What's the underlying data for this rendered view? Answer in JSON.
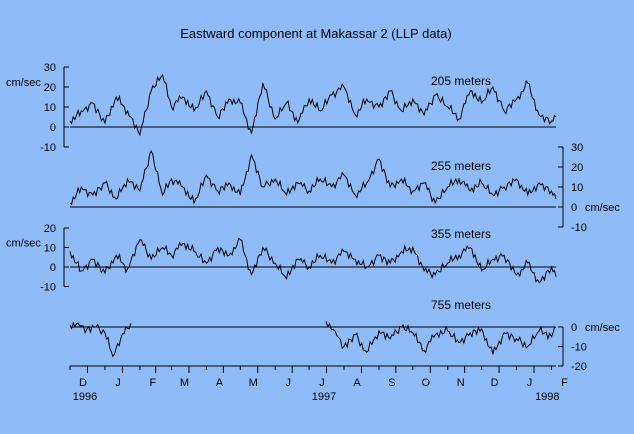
{
  "chart_data": {
    "type": "line",
    "title": "Eastward component at Makassar 2 (LLP data)",
    "background": "#8fbcf9",
    "line_color": "#000000",
    "grid": false,
    "x_axis": {
      "start": "1996-12-01",
      "end": "1998-02-05",
      "tick_labels": [
        "D",
        "J",
        "F",
        "M",
        "A",
        "M",
        "J",
        "J",
        "A",
        "S",
        "O",
        "N",
        "D",
        "J",
        "F"
      ],
      "tick_dates": [
        "1996-12-01",
        "1997-01-01",
        "1997-02-01",
        "1997-03-01",
        "1997-04-01",
        "1997-05-01",
        "1997-06-01",
        "1997-07-01",
        "1997-08-01",
        "1997-09-01",
        "1997-10-01",
        "1997-11-01",
        "1997-12-01",
        "1998-01-01",
        "1998-02-01"
      ],
      "year_labels": [
        {
          "text": "1996",
          "date": "1996-12-01"
        },
        {
          "text": "1997",
          "date": "1997-07-01"
        },
        {
          "text": "1998",
          "date": "1998-01-15"
        }
      ]
    },
    "panels": [
      {
        "name": "205 meters",
        "axis_side": "left",
        "ticks": [
          30,
          20,
          10,
          0,
          -10
        ],
        "unit": "cm/sec",
        "ylim": [
          -10,
          30
        ],
        "gaps": [],
        "x": [
          "1996-12-01",
          "1996-12-11",
          "1996-12-21",
          "1997-01-01",
          "1997-01-11",
          "1997-01-21",
          "1997-02-01",
          "1997-02-11",
          "1997-02-21",
          "1997-03-01",
          "1997-03-11",
          "1997-03-21",
          "1997-04-01",
          "1997-04-11",
          "1997-04-21",
          "1997-05-01",
          "1997-05-11",
          "1997-05-21",
          "1997-06-01",
          "1997-06-11",
          "1997-06-21",
          "1997-07-01",
          "1997-07-11",
          "1997-07-21",
          "1997-08-01",
          "1997-08-11",
          "1997-08-21",
          "1997-09-01",
          "1997-09-11",
          "1997-09-21",
          "1997-10-01",
          "1997-10-11",
          "1997-10-21",
          "1997-11-01",
          "1997-11-11",
          "1997-11-21",
          "1997-12-01",
          "1997-12-11",
          "1997-12-21",
          "1998-01-01",
          "1998-01-11",
          "1998-01-21",
          "1998-02-01",
          "1998-02-05"
        ],
        "y": [
          3,
          8,
          12,
          2,
          15,
          8,
          -4,
          18,
          26,
          10,
          15,
          8,
          18,
          5,
          14,
          12,
          -3,
          22,
          4,
          12,
          2,
          14,
          8,
          16,
          20,
          6,
          14,
          10,
          18,
          8,
          14,
          6,
          16,
          10,
          4,
          18,
          12,
          20,
          8,
          14,
          22,
          6,
          3,
          5
        ]
      },
      {
        "name": "255 meters",
        "axis_side": "right",
        "ticks": [
          30,
          20,
          10,
          0,
          -10
        ],
        "unit": "cm/sec",
        "ylim": [
          -10,
          30
        ],
        "gaps": [],
        "x": [
          "1996-12-01",
          "1996-12-11",
          "1996-12-21",
          "1997-01-01",
          "1997-01-11",
          "1997-01-21",
          "1997-02-01",
          "1997-02-11",
          "1997-02-21",
          "1997-03-01",
          "1997-03-11",
          "1997-03-21",
          "1997-04-01",
          "1997-04-11",
          "1997-04-21",
          "1997-05-01",
          "1997-05-11",
          "1997-05-21",
          "1997-06-01",
          "1997-06-11",
          "1997-06-21",
          "1997-07-01",
          "1997-07-11",
          "1997-07-21",
          "1997-08-01",
          "1997-08-11",
          "1997-08-21",
          "1997-09-01",
          "1997-09-11",
          "1997-09-21",
          "1997-10-01",
          "1997-10-11",
          "1997-10-21",
          "1997-11-01",
          "1997-11-11",
          "1997-11-21",
          "1997-12-01",
          "1997-12-11",
          "1997-12-21",
          "1998-01-01",
          "1998-01-11",
          "1998-01-21",
          "1998-02-01",
          "1998-02-05"
        ],
        "y": [
          2,
          10,
          6,
          12,
          4,
          14,
          8,
          28,
          6,
          14,
          10,
          2,
          16,
          8,
          12,
          6,
          26,
          10,
          14,
          6,
          12,
          8,
          14,
          10,
          16,
          6,
          12,
          24,
          10,
          14,
          8,
          12,
          2,
          10,
          14,
          8,
          12,
          6,
          10,
          14,
          6,
          12,
          8,
          4
        ]
      },
      {
        "name": "355 meters",
        "axis_side": "left",
        "ticks": [
          20,
          10,
          0,
          -10
        ],
        "unit": "cm/sec",
        "ylim": [
          -10,
          20
        ],
        "gaps": [],
        "x": [
          "1996-12-01",
          "1996-12-11",
          "1996-12-21",
          "1997-01-01",
          "1997-01-11",
          "1997-01-21",
          "1997-02-01",
          "1997-02-11",
          "1997-02-21",
          "1997-03-01",
          "1997-03-11",
          "1997-03-21",
          "1997-04-01",
          "1997-04-11",
          "1997-04-21",
          "1997-05-01",
          "1997-05-11",
          "1997-05-21",
          "1997-06-01",
          "1997-06-11",
          "1997-06-21",
          "1997-07-01",
          "1997-07-11",
          "1997-07-21",
          "1997-08-01",
          "1997-08-11",
          "1997-08-21",
          "1997-09-01",
          "1997-09-11",
          "1997-09-21",
          "1997-10-01",
          "1997-10-11",
          "1997-10-21",
          "1997-11-01",
          "1997-11-11",
          "1997-11-21",
          "1997-12-01",
          "1997-12-11",
          "1997-12-21",
          "1998-01-01",
          "1998-01-11",
          "1998-01-21",
          "1998-02-01",
          "1998-02-05"
        ],
        "y": [
          8,
          -2,
          4,
          -3,
          6,
          -1,
          14,
          4,
          10,
          6,
          12,
          8,
          2,
          10,
          6,
          14,
          -4,
          10,
          2,
          -6,
          4,
          0,
          6,
          2,
          8,
          4,
          0,
          6,
          2,
          8,
          10,
          -2,
          -4,
          2,
          6,
          10,
          -2,
          4,
          6,
          -4,
          2,
          -8,
          0,
          -5
        ]
      },
      {
        "name": "755 meters",
        "axis_side": "right",
        "ticks": [
          0,
          -10,
          -20
        ],
        "unit": "cm/sec",
        "ylim": [
          -20,
          5
        ],
        "gaps": [
          [
            "1997-01-25",
            "1997-07-15"
          ]
        ],
        "x": [
          "1996-12-01",
          "1996-12-08",
          "1996-12-16",
          "1996-12-24",
          "1997-01-01",
          "1997-01-08",
          "1997-01-15",
          "1997-01-24",
          "1997-07-16",
          "1997-07-24",
          "1997-08-01",
          "1997-08-11",
          "1997-08-21",
          "1997-09-01",
          "1997-09-11",
          "1997-09-21",
          "1997-10-01",
          "1997-10-11",
          "1997-10-21",
          "1997-11-01",
          "1997-11-11",
          "1997-11-21",
          "1997-12-01",
          "1997-12-11",
          "1997-12-21",
          "1998-01-01",
          "1998-01-11",
          "1998-01-21",
          "1998-02-01",
          "1998-02-05"
        ],
        "y": [
          1,
          2,
          -1,
          0,
          -3,
          -15,
          -6,
          2,
          3,
          -2,
          -10,
          -4,
          -13,
          -2,
          -6,
          0,
          -3,
          -12,
          -4,
          -2,
          -8,
          -3,
          -1,
          -14,
          -3,
          -6,
          -10,
          -2,
          -5,
          0
        ]
      }
    ]
  }
}
